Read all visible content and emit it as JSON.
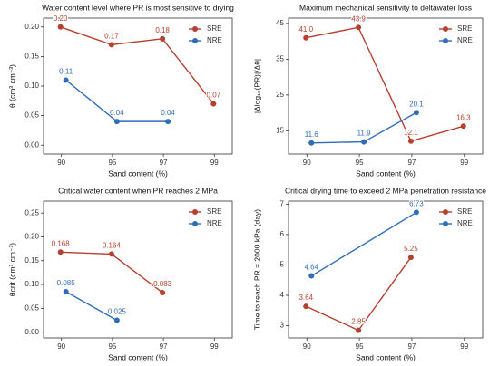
{
  "chart_data": [
    {
      "type": "line",
      "title": "Water content level where PR is most sensitive to drying",
      "xlabel": "Sand content (%)",
      "ylabel": "θ (cm³ cm⁻³)",
      "categories": [
        90,
        95,
        97,
        99
      ],
      "series": [
        {
          "name": "SRE",
          "color": "#b5402f",
          "x": [
            90,
            95,
            97,
            99
          ],
          "values": [
            0.2,
            0.17,
            0.18,
            0.07
          ],
          "value_labels": [
            "0.20",
            "0.17",
            "0.18",
            "0.07"
          ]
        },
        {
          "name": "NRE",
          "color": "#2f6db5",
          "x": [
            90,
            95,
            97
          ],
          "values": [
            0.11,
            0.04,
            0.04
          ],
          "value_labels": [
            "0.11",
            "0.04",
            "0.04"
          ]
        }
      ],
      "ylim": [
        -0.015,
        0.215
      ],
      "yticks": [
        {
          "value": 0,
          "label": "0.00"
        },
        0.05,
        {
          "value": 0.1,
          "label": "0.10"
        },
        0.15,
        {
          "value": 0.2,
          "label": "0.20"
        }
      ],
      "grid": false,
      "legend": "upper right"
    },
    {
      "type": "line",
      "title": "Maximum mechanical sensitivity to deltawater loss",
      "xlabel": "Sand content (%)",
      "ylabel": "|Δlog₁₀(PR)|/Δθ|",
      "categories": [
        90,
        95,
        97,
        99
      ],
      "series": [
        {
          "name": "SRE",
          "color": "#b5402f",
          "x": [
            90,
            95,
            97,
            99
          ],
          "values": [
            41,
            43.9,
            12.1,
            16.3
          ],
          "value_labels": [
            "41.0",
            "43.9",
            "12.1",
            "16.3"
          ]
        },
        {
          "name": "NRE",
          "color": "#2f6db5",
          "x": [
            90,
            95,
            97
          ],
          "values": [
            11.6,
            11.9,
            20.1
          ]
        }
      ],
      "ylim": [
        8.5,
        46.5
      ],
      "yticks": [
        15,
        25,
        35,
        45
      ],
      "grid": false,
      "legend": "upper right"
    },
    {
      "type": "line",
      "title": "Critical water content when PR reaches 2 MPa",
      "xlabel": "Sand content (%)",
      "ylabel": "θcrit (cm³ cm⁻³)",
      "categories": [
        90,
        95,
        97,
        99
      ],
      "series": [
        {
          "name": "SRE",
          "color": "#b5402f",
          "x": [
            90,
            95,
            97
          ],
          "values": [
            0.168,
            0.164,
            0.083
          ]
        },
        {
          "name": "NRE",
          "color": "#2f6db5",
          "x": [
            90,
            95
          ],
          "values": [
            0.085,
            0.025
          ]
        }
      ],
      "ylim": [
        -0.012,
        0.275
      ],
      "yticks": [
        {
          "value": 0,
          "label": "0.00"
        },
        0.05,
        {
          "value": 0.1,
          "label": "0.10"
        },
        0.15,
        {
          "value": 0.2,
          "label": "0.20"
        },
        0.25
      ],
      "grid": false,
      "legend": "upper right"
    },
    {
      "type": "line",
      "title": "Critical drying time to exceed 2 MPa penetration resistance",
      "xlabel": "Sand content (%)",
      "ylabel": "Time to reach PR = 2000 kPa (day)",
      "categories": [
        90,
        95,
        97,
        99
      ],
      "series": [
        {
          "name": "SRE",
          "color": "#b5402f",
          "x": [
            90,
            95,
            97
          ],
          "values": [
            3.64,
            2.85,
            5.25
          ]
        },
        {
          "name": "NRE",
          "color": "#2f6db5",
          "x": [
            90,
            97
          ],
          "values": [
            4.64,
            6.73
          ]
        }
      ],
      "ylim": [
        2.6,
        7.1
      ],
      "yticks": [
        3,
        4,
        5,
        6,
        7
      ],
      "grid": false,
      "legend": "upper right"
    }
  ]
}
